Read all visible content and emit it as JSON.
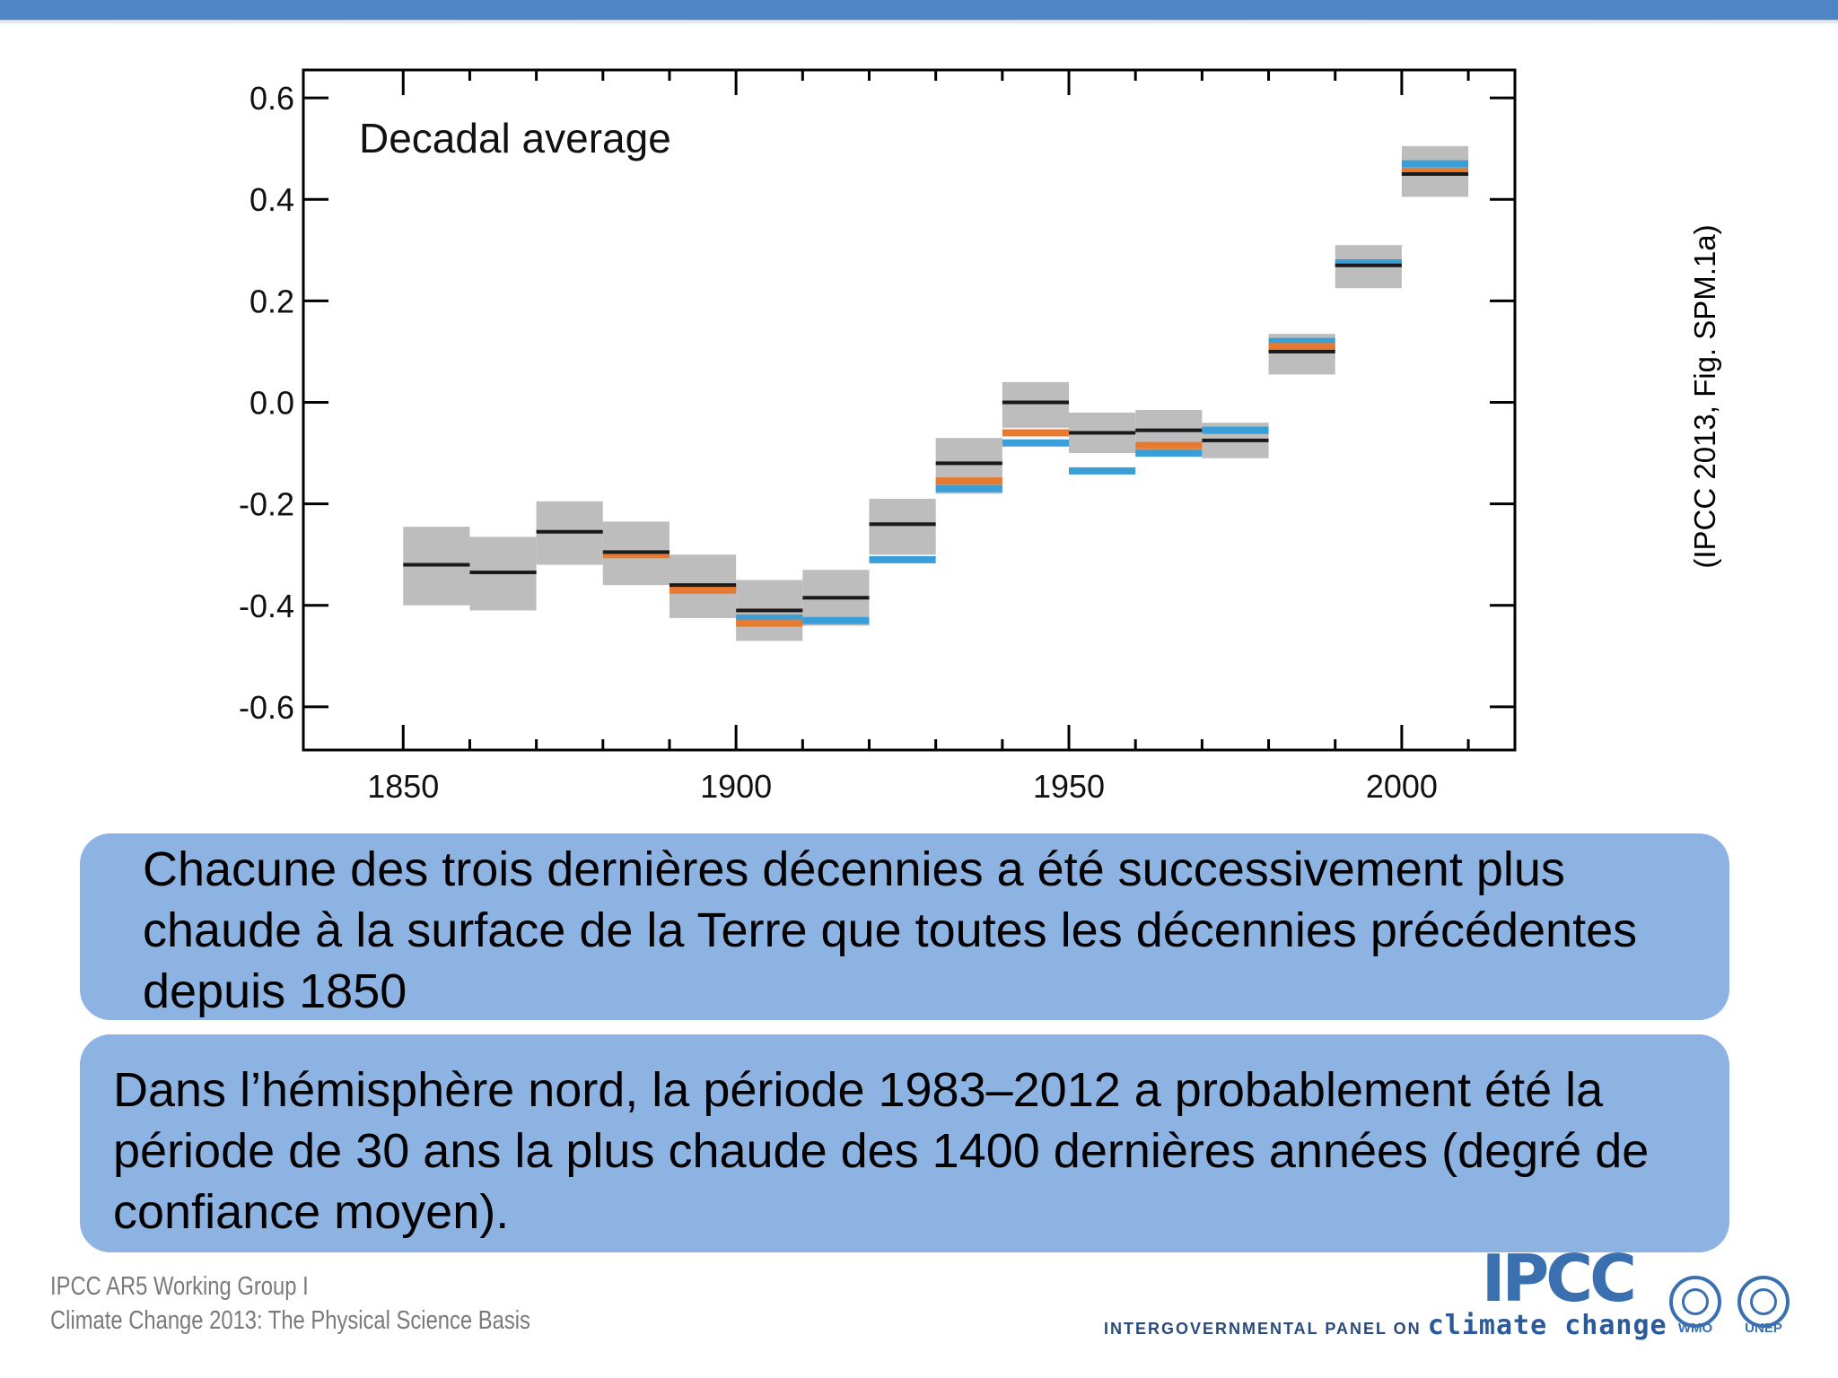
{
  "chart_data": {
    "type": "bar",
    "title": "Decadal average",
    "xlim": [
      1835,
      2017
    ],
    "ylim": [
      -0.685,
      0.655
    ],
    "x_ticks": [
      1850,
      1900,
      1950,
      2000
    ],
    "y_ticks": [
      0.6,
      0.4,
      0.2,
      0.0,
      -0.2,
      -0.4,
      -0.6
    ],
    "y_tick_labels": [
      "0.6",
      "0.4",
      "0.2",
      "0.0",
      "-0.2",
      "-0.4",
      "-0.6"
    ],
    "decades": [
      {
        "start": 1850,
        "end": 1860,
        "black": -0.32,
        "orange": null,
        "blue": null,
        "low": -0.4,
        "high": -0.245
      },
      {
        "start": 1860,
        "end": 1870,
        "black": -0.335,
        "orange": null,
        "blue": null,
        "low": -0.41,
        "high": -0.265
      },
      {
        "start": 1870,
        "end": 1880,
        "black": -0.255,
        "orange": null,
        "blue": null,
        "low": -0.32,
        "high": -0.195
      },
      {
        "start": 1880,
        "end": 1890,
        "black": -0.295,
        "orange": -0.3,
        "blue": null,
        "low": -0.36,
        "high": -0.235
      },
      {
        "start": 1890,
        "end": 1900,
        "black": -0.36,
        "orange": -0.37,
        "blue": -0.365,
        "low": -0.425,
        "high": -0.3
      },
      {
        "start": 1900,
        "end": 1910,
        "black": -0.41,
        "orange": -0.435,
        "blue": -0.425,
        "low": -0.47,
        "high": -0.35
      },
      {
        "start": 1910,
        "end": 1920,
        "black": -0.385,
        "orange": null,
        "blue": -0.43,
        "low": -0.44,
        "high": -0.33
      },
      {
        "start": 1920,
        "end": 1930,
        "black": -0.24,
        "orange": null,
        "blue": -0.31,
        "low": -0.3,
        "high": -0.19
      },
      {
        "start": 1930,
        "end": 1940,
        "black": -0.12,
        "orange": -0.155,
        "blue": -0.17,
        "low": -0.18,
        "high": -0.07
      },
      {
        "start": 1940,
        "end": 1950,
        "black": 0.0,
        "orange": -0.06,
        "blue": -0.08,
        "low": -0.05,
        "high": 0.04
      },
      {
        "start": 1950,
        "end": 1960,
        "black": -0.06,
        "orange": null,
        "blue": -0.135,
        "low": -0.1,
        "high": -0.02
      },
      {
        "start": 1960,
        "end": 1970,
        "black": -0.055,
        "orange": -0.085,
        "blue": -0.1,
        "low": -0.1,
        "high": -0.015
      },
      {
        "start": 1970,
        "end": 1980,
        "black": -0.075,
        "orange": null,
        "blue": -0.055,
        "low": -0.11,
        "high": -0.04
      },
      {
        "start": 1980,
        "end": 1990,
        "black": 0.1,
        "orange": 0.11,
        "blue": 0.12,
        "low": 0.055,
        "high": 0.135
      },
      {
        "start": 1990,
        "end": 2000,
        "black": 0.27,
        "orange": null,
        "blue": 0.275,
        "low": 0.225,
        "high": 0.31
      },
      {
        "start": 2000,
        "end": 2010,
        "black": 0.45,
        "orange": 0.455,
        "blue": 0.47,
        "low": 0.405,
        "high": 0.505
      }
    ],
    "colors": {
      "black": "#1a1a1a",
      "orange": "#e87a30",
      "blue": "#3a9fd8",
      "uncertainty": "#bdbdbd",
      "axis": "#000000"
    }
  },
  "citation": "(IPCC 2013, Fig. SPM.1a)",
  "statements": [
    "Chacune des trois dernières décennies a été successivement plus chaude à la surface de la Terre que toutes les décennies précédentes depuis 1850",
    "Dans l’hémisphère nord, la période 1983–2012 a probablement été la période de 30 ans la plus chaude des 1400 dernières années (degré de confiance moyen)."
  ],
  "footer": {
    "line1": "IPCC AR5 Working Group I",
    "line2": "Climate Change 2013:  The Physical Science Basis",
    "logo_text": "IPCC",
    "tagline": "INTERGOVERNMENTAL PANEL ON",
    "tagline_big": "climate change",
    "org1": "WMO",
    "org2": "UNEP"
  }
}
